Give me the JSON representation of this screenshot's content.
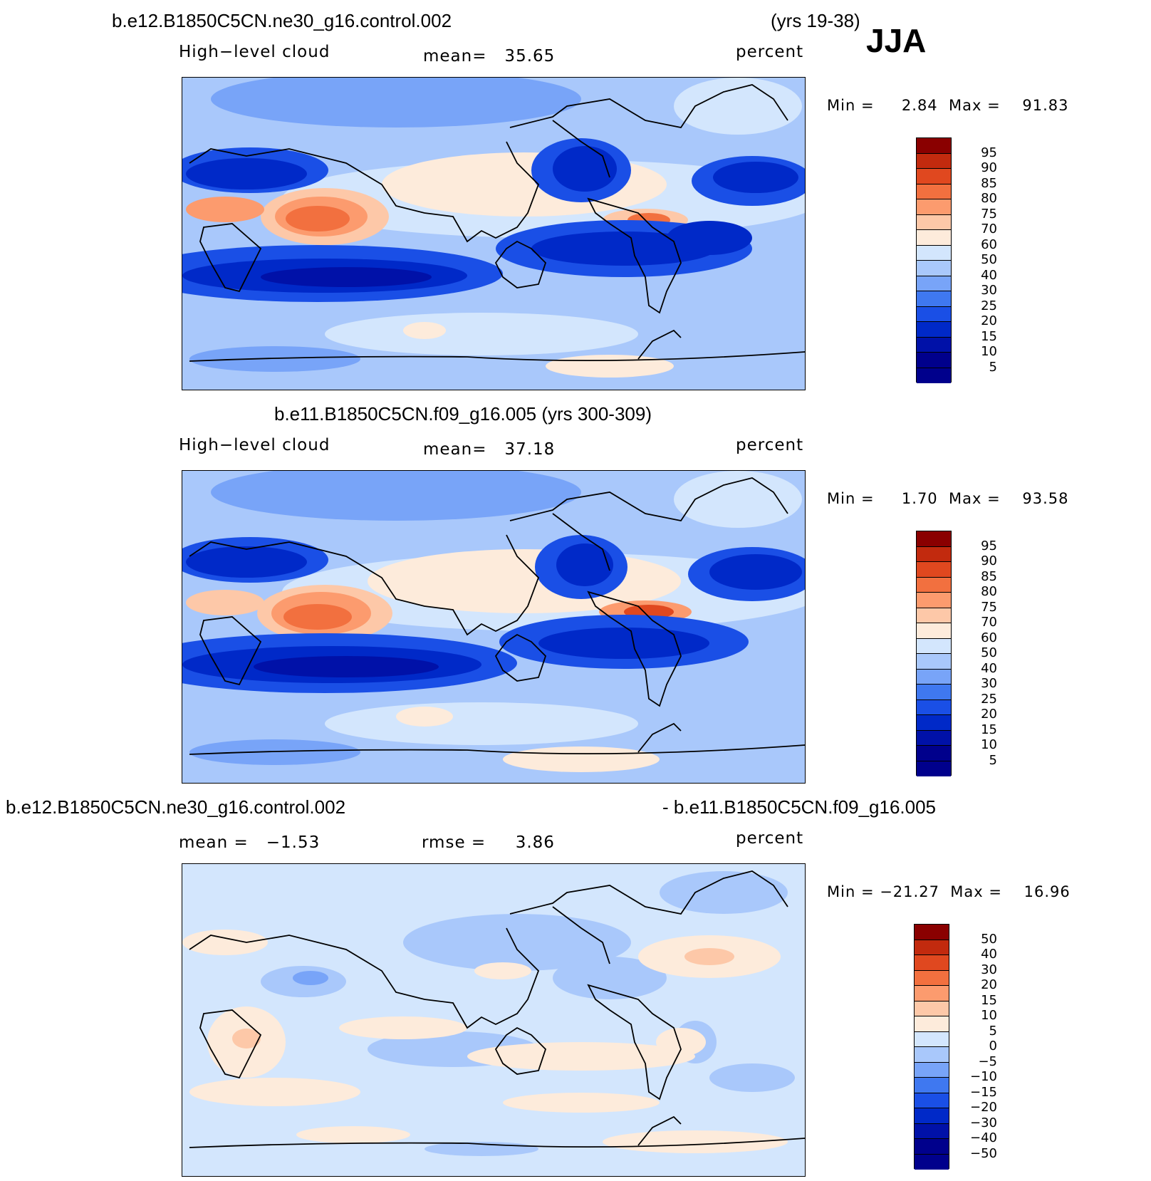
{
  "season": "JJA",
  "colors": {
    "abs_levels": [
      "#00008c",
      "#0011a8",
      "#0029c8",
      "#1a4fe6",
      "#3f78f0",
      "#78a4f8",
      "#a9c8fb",
      "#d3e6fd",
      "#fdebdb",
      "#fdc8a8",
      "#fc9b6e",
      "#f2703f",
      "#e0481f",
      "#c22a0e",
      "#8a0000"
    ],
    "diff_levels": [
      "#00008c",
      "#0011a8",
      "#0029c8",
      "#1a4fe6",
      "#3f78f0",
      "#78a4f8",
      "#a9c8fb",
      "#d3e6fd",
      "#fdebdb",
      "#fdc8a8",
      "#fc9b6e",
      "#f2703f",
      "#e0481f",
      "#c22a0e",
      "#8a0000"
    ]
  },
  "panels": [
    {
      "case_title": "b.e12.B1850C5CN.ne30_g16.control.002",
      "years": "(yrs 19-38)",
      "variable": "High−level cloud",
      "stat_text": "mean=   35.65",
      "units": "percent",
      "minmax": "Min =     2.84  Max =    91.83",
      "colorbar_labels": [
        "95",
        "90",
        "85",
        "80",
        "75",
        "70",
        "60",
        "50",
        "40",
        "30",
        "25",
        "20",
        "15",
        "10",
        "5"
      ]
    },
    {
      "case_title": "b.e11.B1850C5CN.f09_g16.005 (yrs 300-309)",
      "variable": "High−level cloud",
      "stat_text": "mean=   37.18",
      "units": "percent",
      "minmax": "Min =     1.70  Max =    93.58",
      "colorbar_labels": [
        "95",
        "90",
        "85",
        "80",
        "75",
        "70",
        "60",
        "50",
        "40",
        "30",
        "25",
        "20",
        "15",
        "10",
        "5"
      ]
    },
    {
      "case_left": "b.e12.B1850C5CN.ne30_g16.control.002",
      "case_right": "- b.e11.B1850C5CN.f09_g16.005",
      "mean_text": "mean =   −1.53",
      "rmse_text": "rmse =     3.86",
      "units": "percent",
      "minmax": "Min = −21.27  Max =    16.96",
      "colorbar_labels": [
        "50",
        "40",
        "30",
        "20",
        "15",
        "10",
        "5",
        "0",
        "−5",
        "−10",
        "−15",
        "−20",
        "−30",
        "−40",
        "−50"
      ]
    }
  ]
}
